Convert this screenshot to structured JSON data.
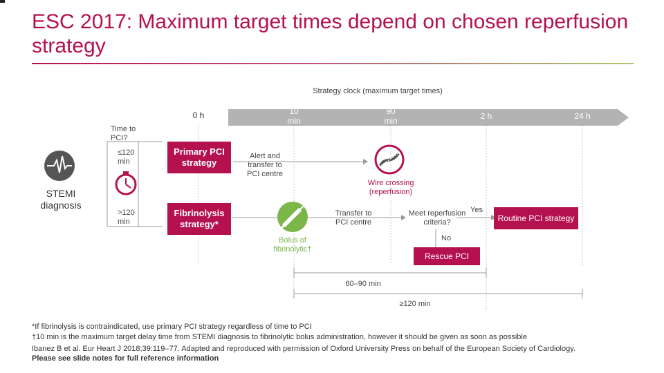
{
  "title": "ESC 2017: Maximum target times depend on chosen reperfusion strategy",
  "clock_label": "Strategy clock (maximum target times)",
  "timeline": {
    "t0": "0 h",
    "t10": "10 min",
    "t90": "90 min",
    "t2h": "2 h",
    "t24h": "24 h"
  },
  "left": {
    "stemi": "STEMI diagnosis",
    "time_to_pci": "Time to PCI?",
    "le120": "≤120 min",
    "gt120": ">120 min"
  },
  "boxes": {
    "primary_pci": "Primary PCI strategy",
    "fibrinolysis": "Fibrinolysis strategy*",
    "routine_pci": "Routine PCI strategy",
    "rescue_pci": "Rescue PCI"
  },
  "labels": {
    "alert": "Alert and transfer to PCI centre",
    "wire": "Wire crossing (reperfusion)",
    "bolus": "Bolus of fibrinolytic†",
    "transfer": "Transfer to PCI centre",
    "meet": "Meet reperfusion criteria?",
    "yes": "Yes",
    "no": "No",
    "range1": "60–90 min",
    "range2": "≥120 min"
  },
  "footnotes": {
    "f1": "*If fibrinolysis is contraindicated, use primary PCI strategy regardless of time to PCI",
    "f2": "†10 min is the maximum target delay time from STEMI diagnosis to fibrinolytic bolus administration, however it should be given as soon as possible",
    "f3": "Ibanez B et al. Eur Heart J 2018;39:119–77. Adapted and reproduced with permission of Oxford University Press on behalf of the European Society of Cardiology.",
    "f4": "Please see slide notes for full reference information"
  },
  "colors": {
    "brand": "#b5114f",
    "green": "#7ab648",
    "timeline_bar": "#b3b3b3",
    "icon_dark": "#555555"
  },
  "icons": [
    "ecg-icon",
    "stopwatch-icon",
    "syringe-icon",
    "wire-crossing-icon"
  ]
}
